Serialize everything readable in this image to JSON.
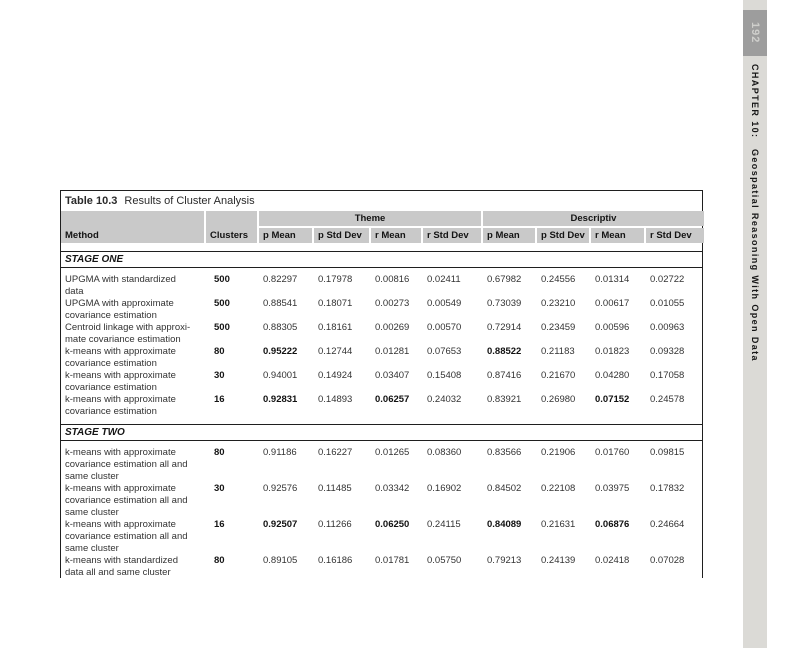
{
  "page": {
    "number": "192",
    "chapter": "CHAPTER 10:",
    "chapter_title": "Geospatial Reasoning With Open Data"
  },
  "table": {
    "label": "Table 10.3",
    "title": "Results of Cluster Analysis",
    "method_header": "Method",
    "clusters_header": "Clusters",
    "groups": {
      "theme": "Theme",
      "descriptive": "Descriptiv"
    },
    "metric_headers": [
      "p Mean",
      "p Std Dev",
      "r Mean",
      "r Std Dev",
      "p Mean",
      "p Std Dev",
      "r Mean",
      "r Std Dev"
    ],
    "colors": {
      "header_gray": "#c9c9c9",
      "sidebar_gray": "#dbdad6",
      "pagenum_gray": "#9d9d9d",
      "rule_black": "#1f1f1f"
    },
    "sections": [
      {
        "label": "STAGE ONE",
        "rows": [
          {
            "method": "UPGMA with standardized\ndata",
            "clusters": "500",
            "lines": 2,
            "values": [
              "0.82297",
              "0.17978",
              "0.00816",
              "0.02411",
              "0.67982",
              "0.24556",
              "0.01314",
              "0.02722"
            ],
            "bold_cols": []
          },
          {
            "method": "UPGMA with approximate\ncovariance estimation",
            "clusters": "500",
            "lines": 2,
            "values": [
              "0.88541",
              "0.18071",
              "0.00273",
              "0.00549",
              "0.73039",
              "0.23210",
              "0.00617",
              "0.01055"
            ],
            "bold_cols": []
          },
          {
            "method": "Centroid linkage with approxi-\nmate covariance estimation",
            "clusters": "500",
            "lines": 2,
            "values": [
              "0.88305",
              "0.18161",
              "0.00269",
              "0.00570",
              "0.72914",
              "0.23459",
              "0.00596",
              "0.00963"
            ],
            "bold_cols": []
          },
          {
            "method": "k-means with approximate\ncovariance estimation",
            "clusters": "80",
            "lines": 2,
            "values": [
              "0.95222",
              "0.12744",
              "0.01281",
              "0.07653",
              "0.88522",
              "0.21183",
              "0.01823",
              "0.09328"
            ],
            "bold_cols": [
              0,
              4
            ]
          },
          {
            "method": "k-means with approximate\ncovariance estimation",
            "clusters": "30",
            "lines": 2,
            "values": [
              "0.94001",
              "0.14924",
              "0.03407",
              "0.15408",
              "0.87416",
              "0.21670",
              "0.04280",
              "0.17058"
            ],
            "bold_cols": []
          },
          {
            "method": "k-means with approximate\ncovariance estimation",
            "clusters": "16",
            "lines": 2,
            "values": [
              "0.92831",
              "0.14893",
              "0.06257",
              "0.24032",
              "0.83921",
              "0.26980",
              "0.07152",
              "0.24578"
            ],
            "bold_cols": [
              0,
              2,
              6
            ]
          }
        ]
      },
      {
        "label": "STAGE TWO",
        "rows": [
          {
            "method": "k-means with approximate\ncovariance estimation all and\nsame cluster",
            "clusters": "80",
            "lines": 3,
            "values": [
              "0.91186",
              "0.16227",
              "0.01265",
              "0.08360",
              "0.83566",
              "0.21906",
              "0.01760",
              "0.09815"
            ],
            "bold_cols": []
          },
          {
            "method": "k-means with approximate\ncovariance estimation all and\nsame cluster",
            "clusters": "30",
            "lines": 3,
            "values": [
              "0.92576",
              "0.11485",
              "0.03342",
              "0.16902",
              "0.84502",
              "0.22108",
              "0.03975",
              "0.17832"
            ],
            "bold_cols": []
          },
          {
            "method": "k-means with approximate\ncovariance estimation all and\nsame cluster",
            "clusters": "16",
            "lines": 3,
            "values": [
              "0.92507",
              "0.11266",
              "0.06250",
              "0.24115",
              "0.84089",
              "0.21631",
              "0.06876",
              "0.24664"
            ],
            "bold_cols": [
              0,
              2,
              4,
              6
            ]
          },
          {
            "method": "k-means with standardized\ndata all and same cluster",
            "clusters": "80",
            "lines": 2,
            "values": [
              "0.89105",
              "0.16186",
              "0.01781",
              "0.05750",
              "0.79213",
              "0.24139",
              "0.02418",
              "0.07028"
            ],
            "bold_cols": []
          }
        ]
      }
    ]
  }
}
